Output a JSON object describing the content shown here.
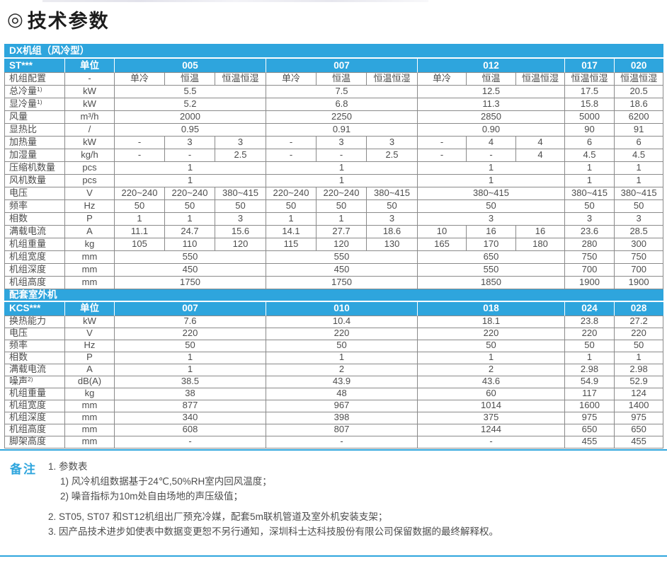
{
  "page": {
    "title_icon": "◎",
    "title": "技术参数"
  },
  "colors": {
    "accent": "#2EA5DD",
    "grid": "#8a8a8a",
    "text": "#4d4d4d"
  },
  "table1": {
    "section_title": "DX机组（风冷型）",
    "model_label": "ST***",
    "unit_label": "单位",
    "models": [
      {
        "label": "005",
        "span": 3
      },
      {
        "label": "007",
        "span": 3
      },
      {
        "label": "012",
        "span": 3
      },
      {
        "label": "017",
        "span": 1
      },
      {
        "label": "020",
        "span": 1
      }
    ],
    "rows": [
      {
        "label": "机组配置",
        "unit": "-",
        "cells": [
          {
            "t": "单冷"
          },
          {
            "t": "恒温"
          },
          {
            "t": "恒温恒湿"
          },
          {
            "t": "单冷"
          },
          {
            "t": "恒温"
          },
          {
            "t": "恒温恒湿"
          },
          {
            "t": "单冷"
          },
          {
            "t": "恒温"
          },
          {
            "t": "恒温恒湿"
          },
          {
            "t": "恒温恒湿"
          },
          {
            "t": "恒温恒湿"
          }
        ]
      },
      {
        "label": "总冷量",
        "sup": "1)",
        "unit": "kW",
        "cells": [
          {
            "t": "5.5",
            "s": 3
          },
          {
            "t": "7.5",
            "s": 3
          },
          {
            "t": "12.5",
            "s": 3
          },
          {
            "t": "17.5"
          },
          {
            "t": "20.5"
          }
        ]
      },
      {
        "label": "显冷量",
        "sup": "1)",
        "unit": "kW",
        "cells": [
          {
            "t": "5.2",
            "s": 3
          },
          {
            "t": "6.8",
            "s": 3
          },
          {
            "t": "11.3",
            "s": 3
          },
          {
            "t": "15.8"
          },
          {
            "t": "18.6"
          }
        ]
      },
      {
        "label": "风量",
        "unit": "m³/h",
        "cells": [
          {
            "t": "2000",
            "s": 3
          },
          {
            "t": "2250",
            "s": 3
          },
          {
            "t": "2850",
            "s": 3
          },
          {
            "t": "5000"
          },
          {
            "t": "6200"
          }
        ]
      },
      {
        "label": "显热比",
        "unit": "/",
        "cells": [
          {
            "t": "0.95",
            "s": 3
          },
          {
            "t": "0.91",
            "s": 3
          },
          {
            "t": "0.90",
            "s": 3
          },
          {
            "t": "90"
          },
          {
            "t": "91"
          }
        ]
      },
      {
        "label": "加热量",
        "unit": "kW",
        "cells": [
          {
            "t": "-"
          },
          {
            "t": "3"
          },
          {
            "t": "3"
          },
          {
            "t": "-"
          },
          {
            "t": "3"
          },
          {
            "t": "3"
          },
          {
            "t": "-"
          },
          {
            "t": "4"
          },
          {
            "t": "4"
          },
          {
            "t": "6"
          },
          {
            "t": "6"
          }
        ]
      },
      {
        "label": "加湿量",
        "unit": "kg/h",
        "cells": [
          {
            "t": "-"
          },
          {
            "t": "-"
          },
          {
            "t": "2.5"
          },
          {
            "t": "-"
          },
          {
            "t": "-"
          },
          {
            "t": "2.5"
          },
          {
            "t": "-"
          },
          {
            "t": "-"
          },
          {
            "t": "4"
          },
          {
            "t": "4.5"
          },
          {
            "t": "4.5"
          }
        ]
      },
      {
        "label": "压缩机数量",
        "unit": "pcs",
        "cells": [
          {
            "t": "1",
            "s": 3
          },
          {
            "t": "1",
            "s": 3
          },
          {
            "t": "1",
            "s": 3
          },
          {
            "t": "1"
          },
          {
            "t": "1"
          }
        ]
      },
      {
        "label": "风机数量",
        "unit": "pcs",
        "cells": [
          {
            "t": "1",
            "s": 3
          },
          {
            "t": "1",
            "s": 3
          },
          {
            "t": "1",
            "s": 3
          },
          {
            "t": "1"
          },
          {
            "t": "1"
          }
        ]
      },
      {
        "label": "电压",
        "unit": "V",
        "cells": [
          {
            "t": "220~240"
          },
          {
            "t": "220~240"
          },
          {
            "t": "380~415"
          },
          {
            "t": "220~240"
          },
          {
            "t": "220~240"
          },
          {
            "t": "380~415"
          },
          {
            "t": "380~415",
            "s": 3
          },
          {
            "t": "380~415"
          },
          {
            "t": "380~415"
          }
        ]
      },
      {
        "label": "频率",
        "unit": "Hz",
        "cells": [
          {
            "t": "50"
          },
          {
            "t": "50"
          },
          {
            "t": "50"
          },
          {
            "t": "50"
          },
          {
            "t": "50"
          },
          {
            "t": "50"
          },
          {
            "t": "50",
            "s": 3
          },
          {
            "t": "50"
          },
          {
            "t": "50"
          }
        ]
      },
      {
        "label": "相数",
        "unit": "P",
        "cells": [
          {
            "t": "1"
          },
          {
            "t": "1"
          },
          {
            "t": "3"
          },
          {
            "t": "1"
          },
          {
            "t": "1"
          },
          {
            "t": "3"
          },
          {
            "t": "3",
            "s": 3
          },
          {
            "t": "3"
          },
          {
            "t": "3"
          }
        ]
      },
      {
        "label": "满载电流",
        "unit": "A",
        "cells": [
          {
            "t": "11.1"
          },
          {
            "t": "24.7"
          },
          {
            "t": "15.6"
          },
          {
            "t": "14.1"
          },
          {
            "t": "27.7"
          },
          {
            "t": "18.6"
          },
          {
            "t": "10"
          },
          {
            "t": "16"
          },
          {
            "t": "16"
          },
          {
            "t": "23.6"
          },
          {
            "t": "28.5"
          }
        ]
      },
      {
        "label": "机组重量",
        "unit": "kg",
        "cells": [
          {
            "t": "105"
          },
          {
            "t": "110"
          },
          {
            "t": "120"
          },
          {
            "t": "115"
          },
          {
            "t": "120"
          },
          {
            "t": "130"
          },
          {
            "t": "165"
          },
          {
            "t": "170"
          },
          {
            "t": "180"
          },
          {
            "t": "280"
          },
          {
            "t": "300"
          }
        ]
      },
      {
        "label": "机组宽度",
        "unit": "mm",
        "cells": [
          {
            "t": "550",
            "s": 3
          },
          {
            "t": "550",
            "s": 3
          },
          {
            "t": "650",
            "s": 3
          },
          {
            "t": "750"
          },
          {
            "t": "750"
          }
        ]
      },
      {
        "label": "机组深度",
        "unit": "mm",
        "cells": [
          {
            "t": "450",
            "s": 3
          },
          {
            "t": "450",
            "s": 3
          },
          {
            "t": "550",
            "s": 3
          },
          {
            "t": "700"
          },
          {
            "t": "700"
          }
        ]
      },
      {
        "label": "机组高度",
        "unit": "mm",
        "cells": [
          {
            "t": "1750",
            "s": 3
          },
          {
            "t": "1750",
            "s": 3
          },
          {
            "t": "1850",
            "s": 3
          },
          {
            "t": "1900"
          },
          {
            "t": "1900"
          }
        ]
      }
    ]
  },
  "table2": {
    "section_title": "配套室外机",
    "model_label": "KCS***",
    "unit_label": "单位",
    "models": [
      {
        "label": "007",
        "span": 3
      },
      {
        "label": "010",
        "span": 3
      },
      {
        "label": "018",
        "span": 3
      },
      {
        "label": "024",
        "span": 1
      },
      {
        "label": "028",
        "span": 1
      }
    ],
    "rows": [
      {
        "label": "换热能力",
        "unit": "kW",
        "cells": [
          {
            "t": "7.6",
            "s": 3
          },
          {
            "t": "10.4",
            "s": 3
          },
          {
            "t": "18.1",
            "s": 3
          },
          {
            "t": "23.8"
          },
          {
            "t": "27.2"
          }
        ]
      },
      {
        "label": "电压",
        "unit": "V",
        "cells": [
          {
            "t": "220",
            "s": 3
          },
          {
            "t": "220",
            "s": 3
          },
          {
            "t": "220",
            "s": 3
          },
          {
            "t": "220"
          },
          {
            "t": "220"
          }
        ]
      },
      {
        "label": "频率",
        "unit": "Hz",
        "cells": [
          {
            "t": "50",
            "s": 3
          },
          {
            "t": "50",
            "s": 3
          },
          {
            "t": "50",
            "s": 3
          },
          {
            "t": "50"
          },
          {
            "t": "50"
          }
        ]
      },
      {
        "label": "相数",
        "unit": "P",
        "cells": [
          {
            "t": "1",
            "s": 3
          },
          {
            "t": "1",
            "s": 3
          },
          {
            "t": "1",
            "s": 3
          },
          {
            "t": "1"
          },
          {
            "t": "1"
          }
        ]
      },
      {
        "label": "满载电流",
        "unit": "A",
        "cells": [
          {
            "t": "1",
            "s": 3
          },
          {
            "t": "2",
            "s": 3
          },
          {
            "t": "2",
            "s": 3
          },
          {
            "t": "2.98"
          },
          {
            "t": "2.98"
          }
        ]
      },
      {
        "label": "噪声",
        "sup": "2)",
        "unit": "dB(A)",
        "cells": [
          {
            "t": "38.5",
            "s": 3
          },
          {
            "t": "43.9",
            "s": 3
          },
          {
            "t": "43.6",
            "s": 3
          },
          {
            "t": "54.9"
          },
          {
            "t": "52.9"
          }
        ]
      },
      {
        "label": "机组重量",
        "unit": "kg",
        "cells": [
          {
            "t": "38",
            "s": 3
          },
          {
            "t": "48",
            "s": 3
          },
          {
            "t": "60",
            "s": 3
          },
          {
            "t": "117"
          },
          {
            "t": "124"
          }
        ]
      },
      {
        "label": "机组宽度",
        "unit": "mm",
        "cells": [
          {
            "t": "877",
            "s": 3
          },
          {
            "t": "967",
            "s": 3
          },
          {
            "t": "1014",
            "s": 3
          },
          {
            "t": "1600"
          },
          {
            "t": "1400"
          }
        ]
      },
      {
        "label": "机组深度",
        "unit": "mm",
        "cells": [
          {
            "t": "340",
            "s": 3
          },
          {
            "t": "398",
            "s": 3
          },
          {
            "t": "375",
            "s": 3
          },
          {
            "t": "975"
          },
          {
            "t": "975"
          }
        ]
      },
      {
        "label": "机组高度",
        "unit": "mm",
        "cells": [
          {
            "t": "608",
            "s": 3
          },
          {
            "t": "807",
            "s": 3
          },
          {
            "t": "1244",
            "s": 3
          },
          {
            "t": "650"
          },
          {
            "t": "650"
          }
        ]
      },
      {
        "label": "脚架高度",
        "unit": "mm",
        "cells": [
          {
            "t": "-",
            "s": 3
          },
          {
            "t": "-",
            "s": 3
          },
          {
            "t": "-",
            "s": 3
          },
          {
            "t": "455"
          },
          {
            "t": "455"
          }
        ]
      }
    ]
  },
  "notes": {
    "heading": "备注",
    "items": [
      {
        "text": "1. 参数表",
        "indent": 0
      },
      {
        "text": "1) 风冷机组数据基于24℃,50%RH室内回风温度；",
        "indent": 1
      },
      {
        "text": "2) 噪音指标为10m处自由场地的声压级值；",
        "indent": 1
      },
      {
        "text": "2. ST05, ST07 和ST12机组出厂预充冷媒，配套5m联机管道及室外机安装支架；",
        "indent": 0
      },
      {
        "text": "3. 因产品技术进步如使表中数据变更恕不另行通知，深圳科士达科技股份有限公司保留数据的最终解释权。",
        "indent": 0
      }
    ]
  }
}
